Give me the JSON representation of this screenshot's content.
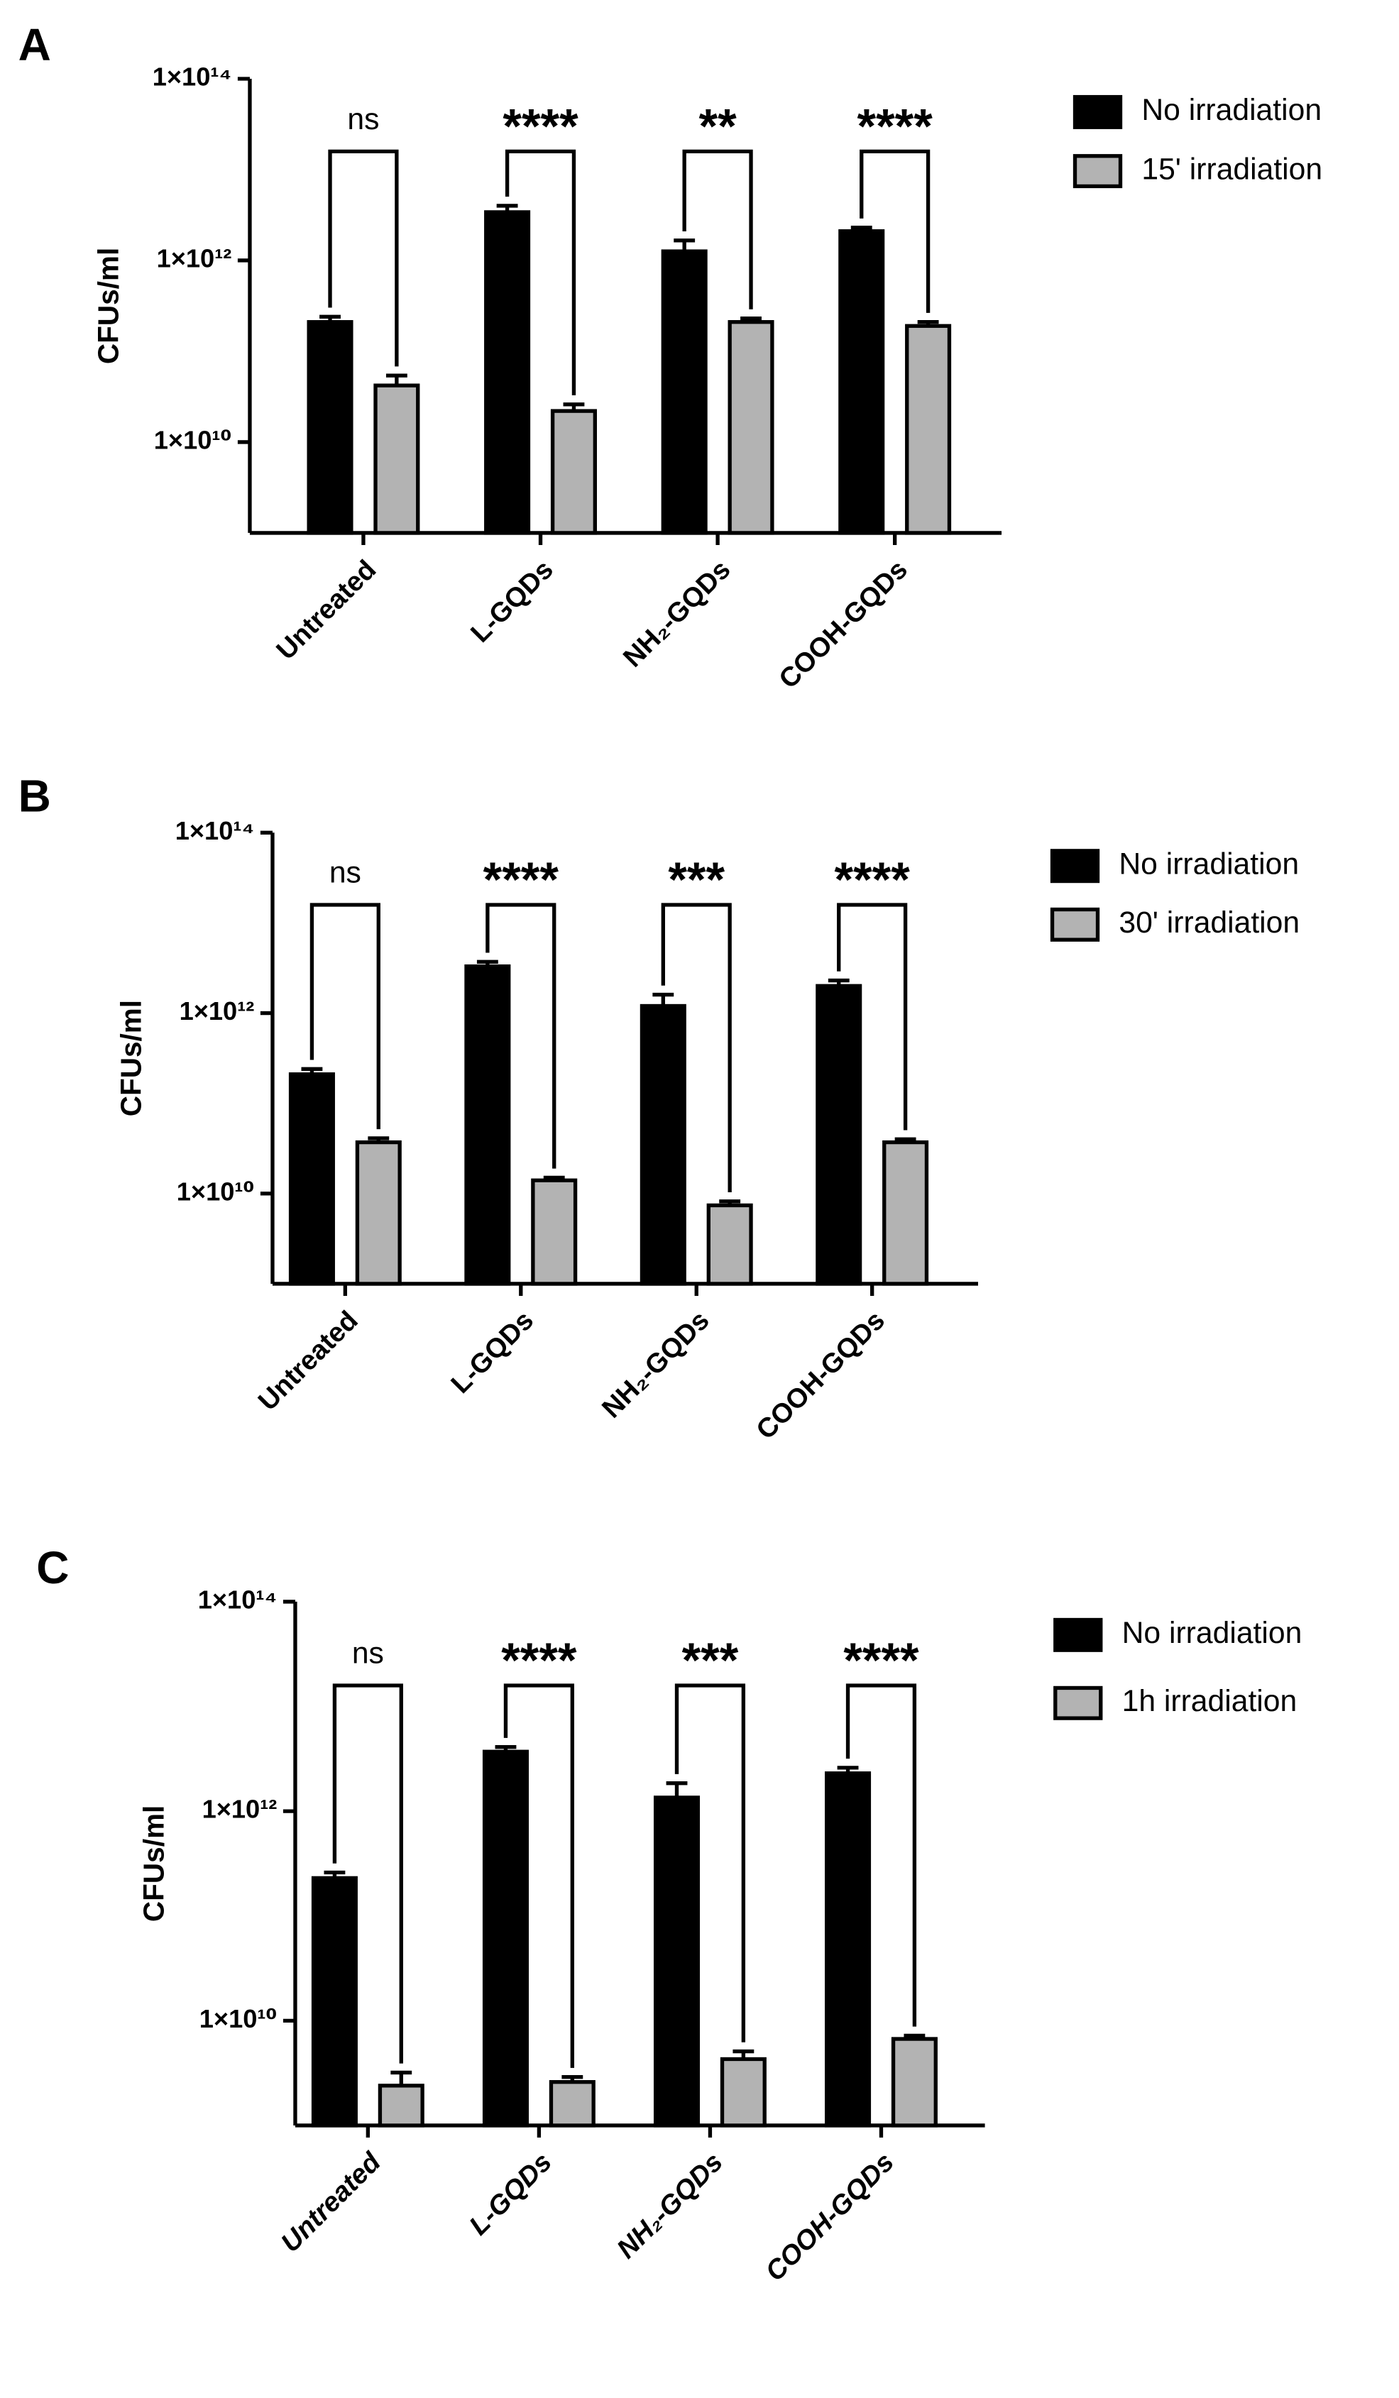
{
  "chart_data": [
    {
      "type": "bar",
      "panel_label": "A",
      "y_label": "CFUs/ml",
      "log_scale": true,
      "categories": [
        "Untreated",
        "L-GQDs",
        "NH₂-GQDs",
        "COOH-GQDs"
      ],
      "category_style": "normal",
      "series": [
        {
          "name": "No irradiation",
          "color": "#000000",
          "values": [
            210000000000.0,
            3400000000000.0,
            1260000000000.0,
            2100000000000.0
          ],
          "errors": [
            30000000000.0,
            600000000000.0,
            400000000000.0,
            200000000000.0
          ]
        },
        {
          "name": "15' irradiation",
          "color": "#b3b3b3",
          "values": [
            42000000000.0,
            22000000000.0,
            210000000000.0,
            190000000000.0
          ],
          "errors": [
            12000000000.0,
            4000000000.0,
            20000000000.0,
            20000000000.0
          ]
        }
      ],
      "annotations": [
        "ns",
        "****",
        "**",
        "****"
      ],
      "ylim": [
        1000000000.0,
        100000000000000.0
      ],
      "yticks": [
        {
          "value": 10000000000.0,
          "label": "1×10¹⁰"
        },
        {
          "value": 1000000000000.0,
          "label": "1×10¹²"
        },
        {
          "value": 100000000000000.0,
          "label": "1×10¹⁴"
        }
      ]
    },
    {
      "type": "bar",
      "panel_label": "B",
      "y_label": "CFUs/ml",
      "log_scale": true,
      "categories": [
        "Untreated",
        "L-GQDs",
        "NH₂-GQDs",
        "COOH-GQDs"
      ],
      "category_style": "normal",
      "series": [
        {
          "name": "No irradiation",
          "color": "#000000",
          "values": [
            210000000000.0,
            3300000000000.0,
            1200000000000.0,
            2000000000000.0
          ],
          "errors": [
            30000000000.0,
            400000000000.0,
            400000000000.0,
            300000000000.0
          ]
        },
        {
          "name": "30' irradiation",
          "color": "#b3b3b3",
          "values": [
            37000000000.0,
            14000000000.0,
            7400000000.0,
            37000000000.0
          ],
          "errors": [
            4000000000.0,
            1000000000.0,
            800000000.0,
            3000000000.0
          ]
        }
      ],
      "annotations": [
        "ns",
        "****",
        "***",
        "****"
      ],
      "ylim": [
        1000000000.0,
        100000000000000.0
      ],
      "yticks": [
        {
          "value": 10000000000.0,
          "label": "1×10¹⁰"
        },
        {
          "value": 1000000000000.0,
          "label": "1×10¹²"
        },
        {
          "value": 100000000000000.0,
          "label": "1×10¹⁴"
        }
      ]
    },
    {
      "type": "bar",
      "panel_label": "C",
      "y_label": "CFUs/ml",
      "log_scale": true,
      "categories": [
        "Untreated",
        "L-GQDs",
        "NH₂-GQDs",
        "COOH-GQDs"
      ],
      "category_style": "italic",
      "series": [
        {
          "name": "No irradiation",
          "color": "#000000",
          "values": [
            230000000000.0,
            3700000000000.0,
            1350000000000.0,
            2300000000000.0
          ],
          "errors": [
            30000000000.0,
            400000000000.0,
            500000000000.0,
            300000000000.0
          ]
        },
        {
          "name": "1h irradiation",
          "color": "#b3b3b3",
          "values": [
            2400000000.0,
            2600000000.0,
            4300000000.0,
            6700000000.0
          ],
          "errors": [
            800000000.0,
            300000000.0,
            800000000.0,
            500000000.0
          ]
        }
      ],
      "annotations": [
        "ns",
        "****",
        "***",
        "****"
      ],
      "ylim": [
        1000000000.0,
        100000000000000.0
      ],
      "yticks": [
        {
          "value": 10000000000.0,
          "label": "1×10¹⁰"
        },
        {
          "value": 1000000000000.0,
          "label": "1×10¹²"
        },
        {
          "value": 100000000000000.0,
          "label": "1×10¹⁴"
        }
      ]
    }
  ]
}
